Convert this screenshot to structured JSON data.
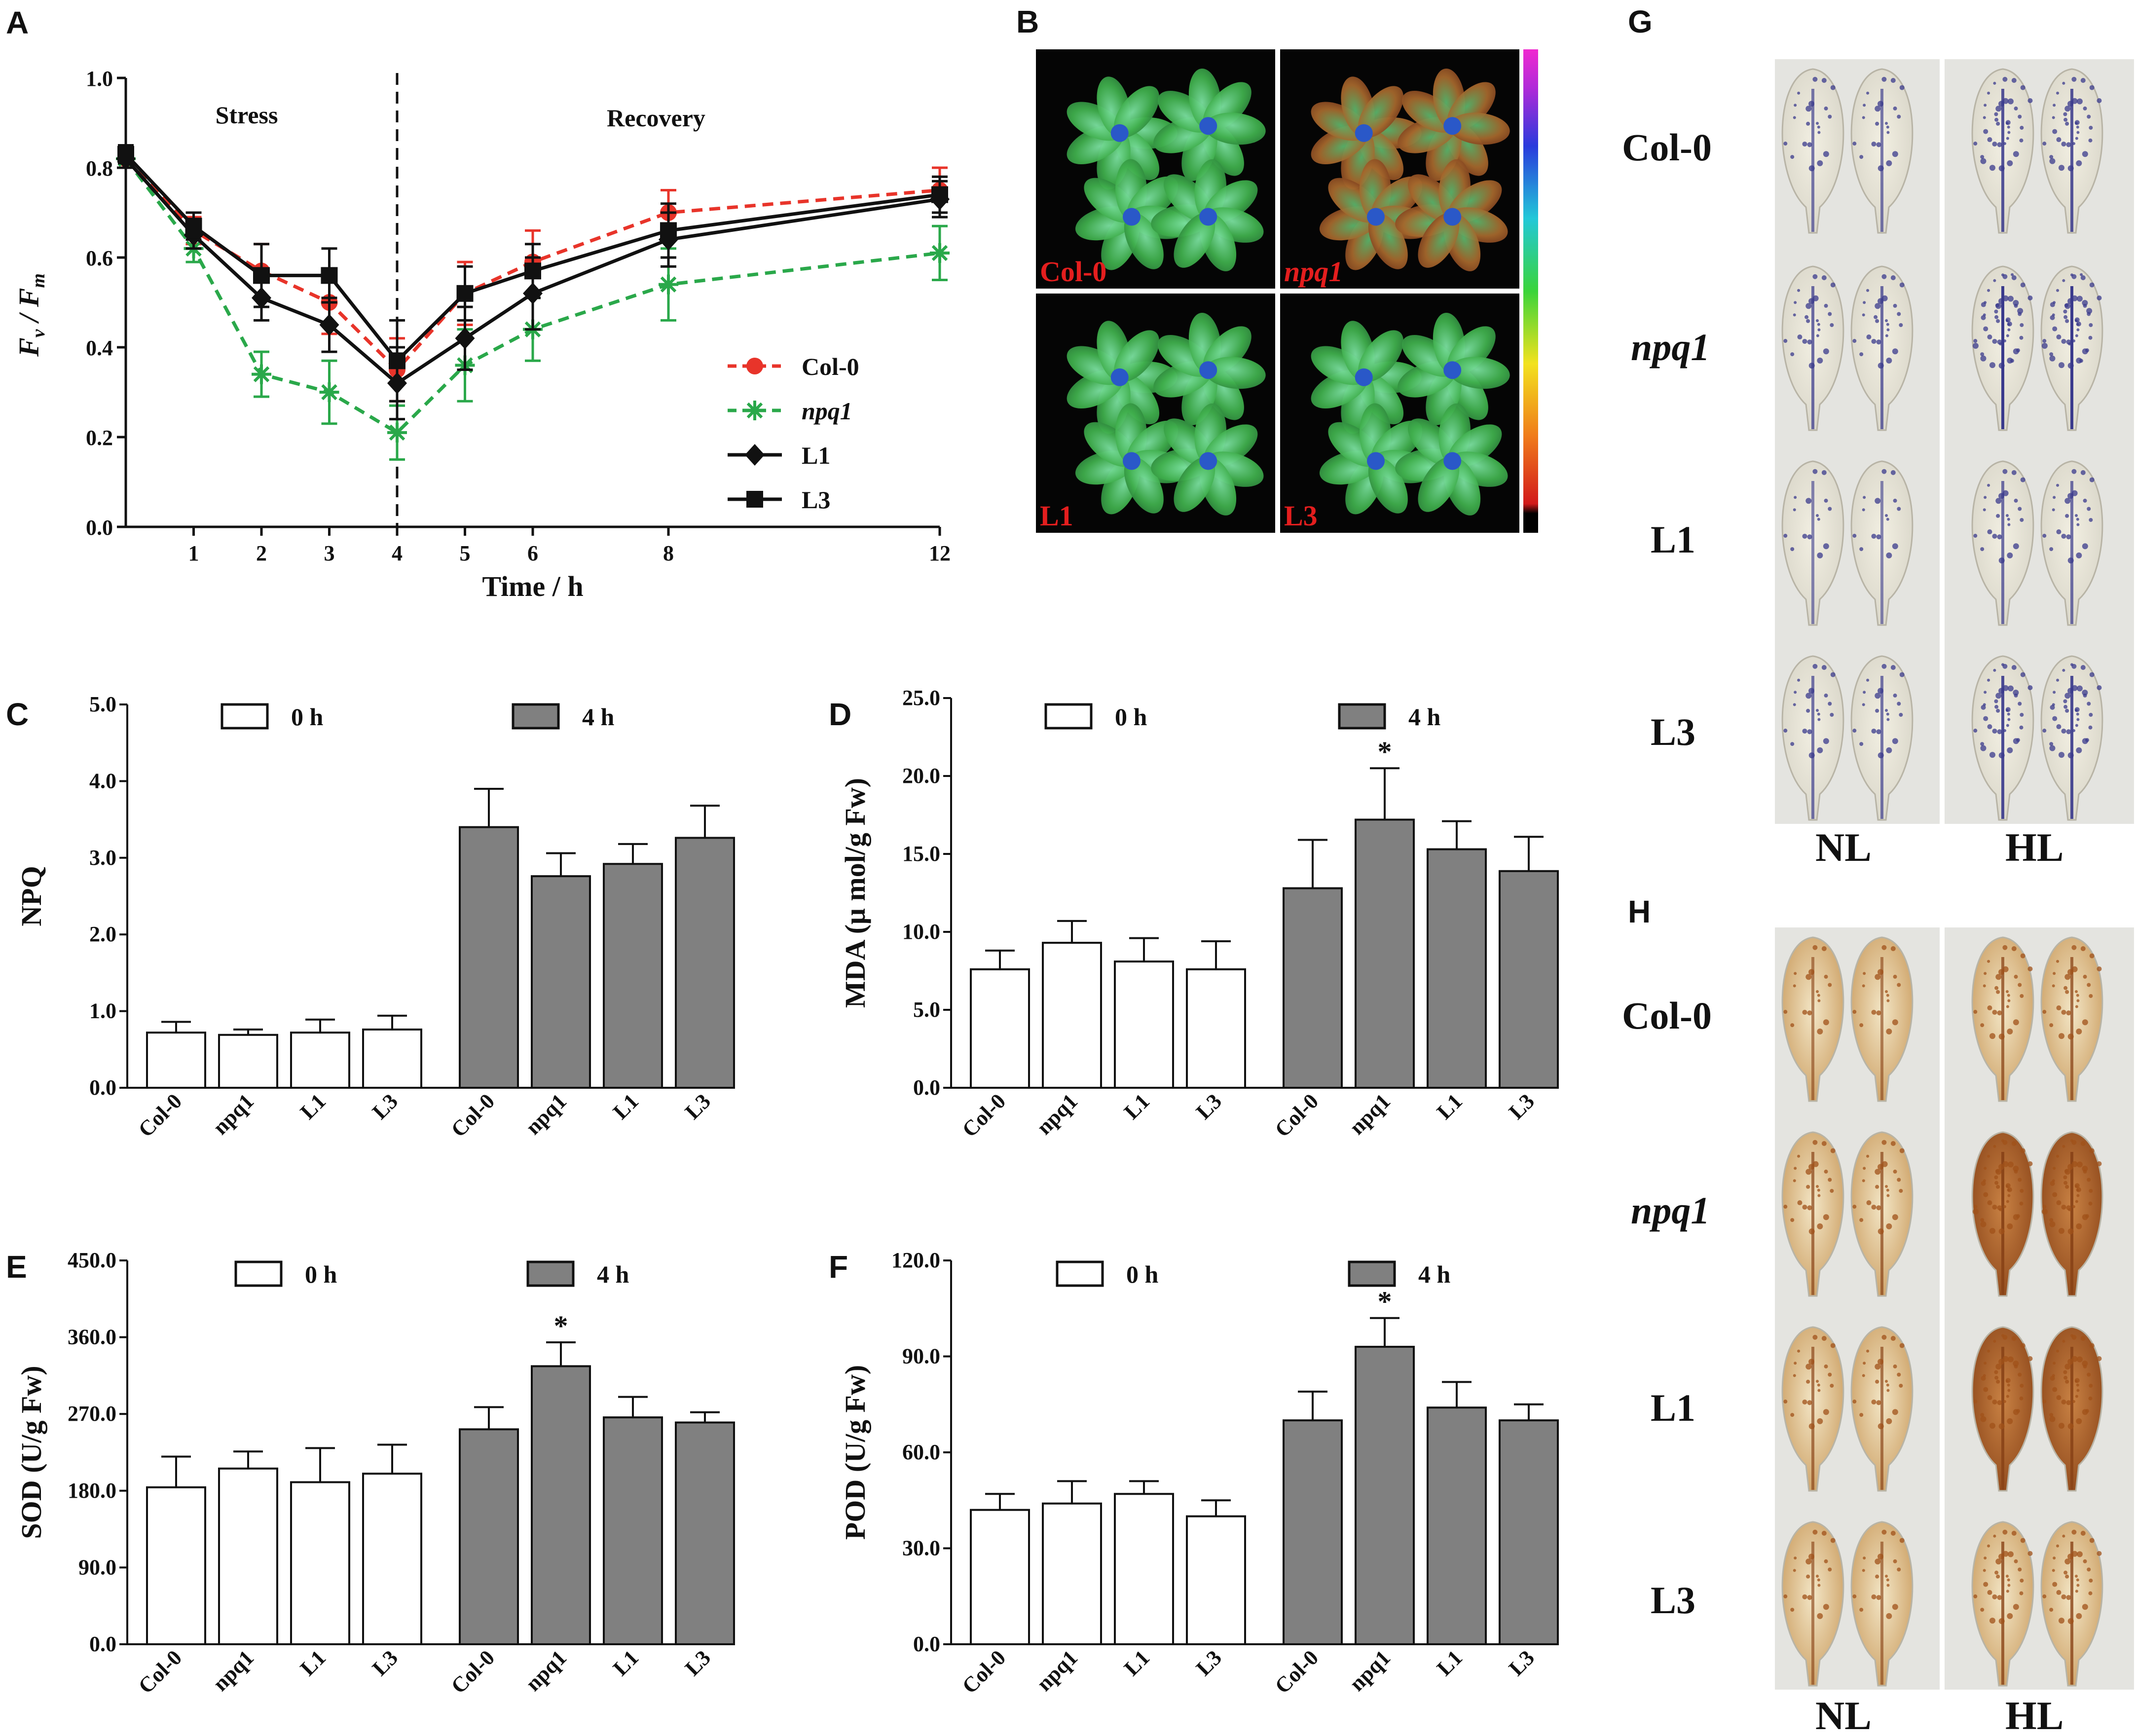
{
  "panels": {
    "A": "A",
    "B": "B",
    "C": "C",
    "D": "D",
    "E": "E",
    "F": "F",
    "G": "G",
    "H": "H"
  },
  "chart_data": [
    {
      "id": "A",
      "type": "line",
      "xlabel": "Time / h",
      "ylabel": "Fv / Fm",
      "ylabel_main": "F",
      "ylabel_sub1": "v",
      "ylabel_sep": " / F",
      "ylabel_sub2": "m",
      "ylim": [
        0.0,
        1.0
      ],
      "xlim": [
        0,
        12
      ],
      "yticks": [
        "0.0",
        "0.2",
        "0.4",
        "0.6",
        "0.8",
        "1.0"
      ],
      "xticks": [
        "1",
        "2",
        "3",
        "4",
        "5",
        "6",
        "8",
        "12"
      ],
      "annotations": [
        "Stress",
        "Recovery"
      ],
      "x": [
        0,
        1,
        2,
        3,
        4,
        5,
        6,
        8,
        12
      ],
      "series": [
        {
          "name": "Col-0",
          "color": "#e8342a",
          "dash": true,
          "marker": "circle",
          "values": [
            0.82,
            0.66,
            0.57,
            0.5,
            0.35,
            0.52,
            0.59,
            0.7,
            0.75
          ],
          "errors": [
            0.02,
            0.03,
            0.06,
            0.07,
            0.07,
            0.07,
            0.07,
            0.05,
            0.05
          ]
        },
        {
          "name": "npq1",
          "color": "#2aa84a",
          "dash": true,
          "marker": "star",
          "values": [
            0.82,
            0.62,
            0.34,
            0.3,
            0.21,
            0.36,
            0.44,
            0.54,
            0.61
          ],
          "errors": [
            0.02,
            0.03,
            0.05,
            0.07,
            0.06,
            0.08,
            0.07,
            0.08,
            0.06
          ]
        },
        {
          "name": "L1",
          "color": "#111111",
          "dash": false,
          "marker": "diamond",
          "values": [
            0.82,
            0.65,
            0.51,
            0.45,
            0.32,
            0.42,
            0.52,
            0.64,
            0.73
          ],
          "errors": [
            0.02,
            0.03,
            0.05,
            0.06,
            0.08,
            0.07,
            0.08,
            0.06,
            0.04
          ]
        },
        {
          "name": "L3",
          "color": "#111111",
          "dash": false,
          "marker": "square",
          "values": [
            0.83,
            0.67,
            0.56,
            0.56,
            0.37,
            0.52,
            0.57,
            0.66,
            0.74
          ],
          "errors": [
            0.02,
            0.03,
            0.07,
            0.06,
            0.09,
            0.06,
            0.06,
            0.06,
            0.04
          ]
        }
      ]
    },
    {
      "id": "C",
      "type": "bar",
      "ylabel": "NPQ",
      "ylim": [
        0,
        5
      ],
      "yticks": [
        "0.0",
        "1.0",
        "2.0",
        "3.0",
        "4.0",
        "5.0"
      ],
      "categories": [
        "Col-0",
        "npq1",
        "L1",
        "L3",
        "Col-0",
        "npq1",
        "L1",
        "L3"
      ],
      "legend": [
        "0 h",
        "4 h"
      ],
      "values": [
        0.72,
        0.69,
        0.72,
        0.76,
        3.4,
        2.76,
        2.92,
        3.26
      ],
      "errors": [
        0.14,
        0.07,
        0.17,
        0.18,
        0.5,
        0.3,
        0.26,
        0.42
      ],
      "stars": [
        "",
        "",
        "",
        "",
        "",
        "",
        "",
        ""
      ]
    },
    {
      "id": "D",
      "type": "bar",
      "ylabel": "MDA (μ mol/g Fw)",
      "ylim": [
        0,
        25
      ],
      "yticks": [
        "0.0",
        "5.0",
        "10.0",
        "15.0",
        "20.0",
        "25.0"
      ],
      "categories": [
        "Col-0",
        "npq1",
        "L1",
        "L3",
        "Col-0",
        "npq1",
        "L1",
        "L3"
      ],
      "legend": [
        "0 h",
        "4 h"
      ],
      "values": [
        7.6,
        9.3,
        8.1,
        7.6,
        12.8,
        17.2,
        15.3,
        13.9
      ],
      "errors": [
        1.2,
        1.4,
        1.5,
        1.8,
        3.1,
        3.3,
        1.8,
        2.2
      ],
      "stars": [
        "",
        "",
        "",
        "",
        "",
        "*",
        "",
        ""
      ]
    },
    {
      "id": "E",
      "type": "bar",
      "ylabel": "SOD (U/g Fw)",
      "ylim": [
        0,
        450
      ],
      "yticks": [
        "0.0",
        "90.0",
        "180.0",
        "270.0",
        "360.0",
        "450.0"
      ],
      "categories": [
        "Col-0",
        "npq1",
        "L1",
        "L3",
        "Col-0",
        "npq1",
        "L1",
        "L3"
      ],
      "legend": [
        "0 h",
        "4 h"
      ],
      "values": [
        184,
        206,
        190,
        200,
        252,
        326,
        266,
        260
      ],
      "errors": [
        36,
        20,
        40,
        34,
        26,
        28,
        24,
        12
      ],
      "stars": [
        "",
        "",
        "",
        "",
        "",
        "*",
        "",
        ""
      ]
    },
    {
      "id": "F",
      "type": "bar",
      "ylabel": "POD (U/g Fw)",
      "ylim": [
        0,
        120
      ],
      "yticks": [
        "0.0",
        "30.0",
        "60.0",
        "90.0",
        "120.0"
      ],
      "categories": [
        "Col-0",
        "npq1",
        "L1",
        "L3",
        "Col-0",
        "npq1",
        "L1",
        "L3"
      ],
      "legend": [
        "0 h",
        "4 h"
      ],
      "values": [
        42,
        44,
        47,
        40,
        70,
        93,
        74,
        70
      ],
      "errors": [
        5,
        7,
        4,
        5,
        9,
        9,
        8,
        5
      ],
      "stars": [
        "",
        "",
        "",
        "",
        "",
        "*",
        "",
        ""
      ]
    }
  ],
  "panelB": {
    "labels": [
      "Col-0",
      "npq1",
      "L1",
      "L3"
    ]
  },
  "panelG": {
    "rows": [
      "Col-0",
      "npq1",
      "L1",
      "L3"
    ],
    "cols": [
      "NL",
      "HL"
    ]
  },
  "panelH": {
    "rows": [
      "Col-0",
      "npq1",
      "L1",
      "L3"
    ],
    "cols": [
      "NL",
      "HL"
    ]
  },
  "colors": {
    "bar_4h": "#808080",
    "bar_0h": "#ffffff",
    "nbt_stain": "#3a3a8c",
    "dab_stain": "#a0521a"
  }
}
